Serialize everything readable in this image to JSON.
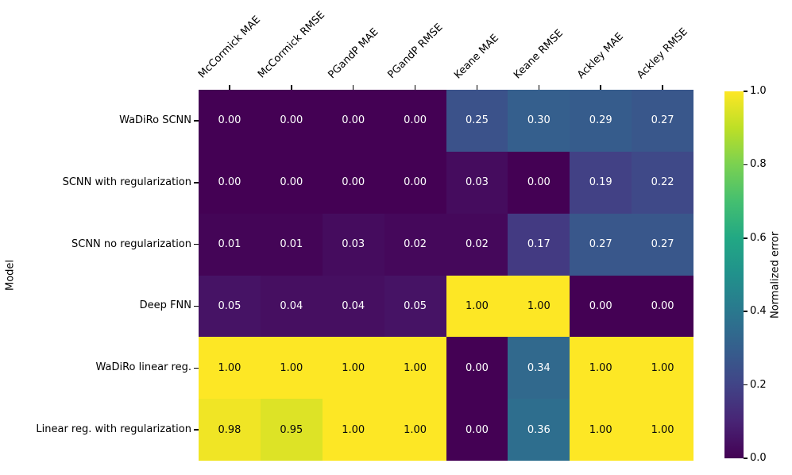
{
  "figure": {
    "background": "#ffffff",
    "annotation_dark_text": "#0a0a0a",
    "annotation_light_text": "#ffffff"
  },
  "chart_data": {
    "type": "heatmap",
    "title": "",
    "xlabel": "",
    "ylabel": "Model",
    "colorbar_label": "Normalized error",
    "colormap": "viridis",
    "vmin": 0.0,
    "vmax": 1.0,
    "value_format": "%.2f",
    "colorbar_tick_format": "%.1f",
    "colorbar_ticks": [
      0.0,
      0.2,
      0.4,
      0.6,
      0.8,
      1.0
    ],
    "grid": false,
    "legend_position": "none",
    "columns": [
      "McCormick MAE",
      "McCormick RMSE",
      "PGandP MAE",
      "PGandP RMSE",
      "Keane MAE",
      "Keane RMSE",
      "Ackley MAE",
      "Ackley RMSE"
    ],
    "rows": [
      "WaDiRo SCNN",
      "SCNN with regularization",
      "SCNN no regularization",
      "Deep FNN",
      "WaDiRo linear reg.",
      "Linear reg. with regularization"
    ],
    "values": [
      [
        0.0,
        0.0,
        0.0,
        0.0,
        0.25,
        0.3,
        0.29,
        0.27
      ],
      [
        0.0,
        0.0,
        0.0,
        0.0,
        0.03,
        0.0,
        0.19,
        0.22
      ],
      [
        0.01,
        0.01,
        0.03,
        0.02,
        0.02,
        0.17,
        0.27,
        0.27
      ],
      [
        0.05,
        0.04,
        0.04,
        0.05,
        1.0,
        1.0,
        0.0,
        0.0
      ],
      [
        1.0,
        1.0,
        1.0,
        1.0,
        0.0,
        0.34,
        1.0,
        1.0
      ],
      [
        0.98,
        0.95,
        1.0,
        1.0,
        0.0,
        0.36,
        1.0,
        1.0
      ]
    ],
    "viridis_stops": [
      "#440154",
      "#482475",
      "#414487",
      "#355f8d",
      "#2a788e",
      "#21918c",
      "#22a884",
      "#44bf70",
      "#7ad151",
      "#bddf26",
      "#fde725"
    ]
  }
}
